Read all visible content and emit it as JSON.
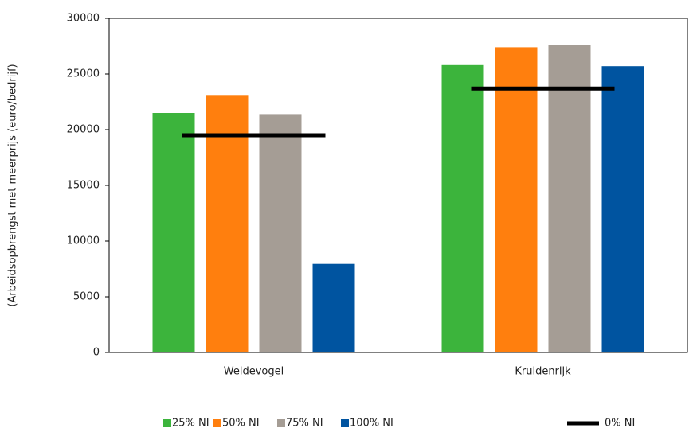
{
  "chart_data": {
    "type": "bar",
    "y_label": "(Arbeidsopbrengst met meerprijs (euro/bedrijf)",
    "categories": [
      "Weidevogel",
      "Kruidenrijk"
    ],
    "series": [
      {
        "name": "25% NI",
        "color": "#3cb43c",
        "values": [
          21500,
          25800
        ]
      },
      {
        "name": "50% NI",
        "color": "#ff7f0e",
        "values": [
          23050,
          27400
        ]
      },
      {
        "name": "75% NI",
        "color": "#a59d95",
        "values": [
          21400,
          27600
        ]
      },
      {
        "name": "100% NI",
        "color": "#0054a0",
        "values": [
          7950,
          25700
        ]
      },
      {
        "name": "0% NI",
        "color": "#000000",
        "values": [
          19500,
          23700
        ],
        "mark": "line"
      }
    ],
    "ylim": [
      0,
      30000
    ],
    "yticks": [
      0,
      5000,
      10000,
      15000,
      20000,
      25000,
      30000
    ],
    "legend": "bottom"
  }
}
